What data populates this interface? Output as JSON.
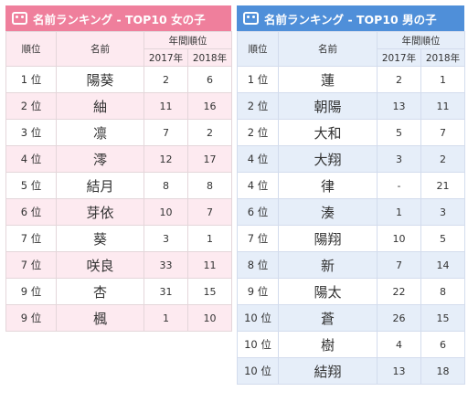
{
  "girls": {
    "title": "名前ランキング - TOP10 女の子",
    "headers": {
      "rank": "順位",
      "name": "名前",
      "yearly": "年間順位",
      "y2017": "2017年",
      "y2018": "2018年"
    },
    "rows": [
      {
        "rank": "1 位",
        "name": "陽葵",
        "y2017": "2",
        "y2018": "6"
      },
      {
        "rank": "2 位",
        "name": "紬",
        "y2017": "11",
        "y2018": "16"
      },
      {
        "rank": "3 位",
        "name": "凛",
        "y2017": "7",
        "y2018": "2"
      },
      {
        "rank": "4 位",
        "name": "澪",
        "y2017": "12",
        "y2018": "17"
      },
      {
        "rank": "5 位",
        "name": "結月",
        "y2017": "8",
        "y2018": "8"
      },
      {
        "rank": "6 位",
        "name": "芽依",
        "y2017": "10",
        "y2018": "7"
      },
      {
        "rank": "7 位",
        "name": "葵",
        "y2017": "3",
        "y2018": "1"
      },
      {
        "rank": "7 位",
        "name": "咲良",
        "y2017": "33",
        "y2018": "11"
      },
      {
        "rank": "9 位",
        "name": "杏",
        "y2017": "31",
        "y2018": "15"
      },
      {
        "rank": "9 位",
        "name": "楓",
        "y2017": "1",
        "y2018": "10"
      }
    ]
  },
  "boys": {
    "title": "名前ランキング - TOP10 男の子",
    "headers": {
      "rank": "順位",
      "name": "名前",
      "yearly": "年間順位",
      "y2017": "2017年",
      "y2018": "2018年"
    },
    "rows": [
      {
        "rank": "1 位",
        "name": "蓮",
        "y2017": "2",
        "y2018": "1"
      },
      {
        "rank": "2 位",
        "name": "朝陽",
        "y2017": "13",
        "y2018": "11"
      },
      {
        "rank": "2 位",
        "name": "大和",
        "y2017": "5",
        "y2018": "7"
      },
      {
        "rank": "4 位",
        "name": "大翔",
        "y2017": "3",
        "y2018": "2"
      },
      {
        "rank": "4 位",
        "name": "律",
        "y2017": "-",
        "y2018": "21"
      },
      {
        "rank": "6 位",
        "name": "湊",
        "y2017": "1",
        "y2018": "3"
      },
      {
        "rank": "7 位",
        "name": "陽翔",
        "y2017": "10",
        "y2018": "5"
      },
      {
        "rank": "8 位",
        "name": "新",
        "y2017": "7",
        "y2018": "14"
      },
      {
        "rank": "9 位",
        "name": "陽太",
        "y2017": "22",
        "y2018": "8"
      },
      {
        "rank": "10 位",
        "name": "蒼",
        "y2017": "26",
        "y2018": "15"
      },
      {
        "rank": "10 位",
        "name": "樹",
        "y2017": "4",
        "y2018": "6"
      },
      {
        "rank": "10 位",
        "name": "結翔",
        "y2017": "13",
        "y2018": "18"
      }
    ]
  },
  "colors": {
    "girls_accent": "#ef7f9c",
    "boys_accent": "#4f8fd9",
    "girls_stripe": "#fdeaf0",
    "boys_stripe": "#e6eef9"
  },
  "icons": {
    "header": "pig-face-icon"
  }
}
